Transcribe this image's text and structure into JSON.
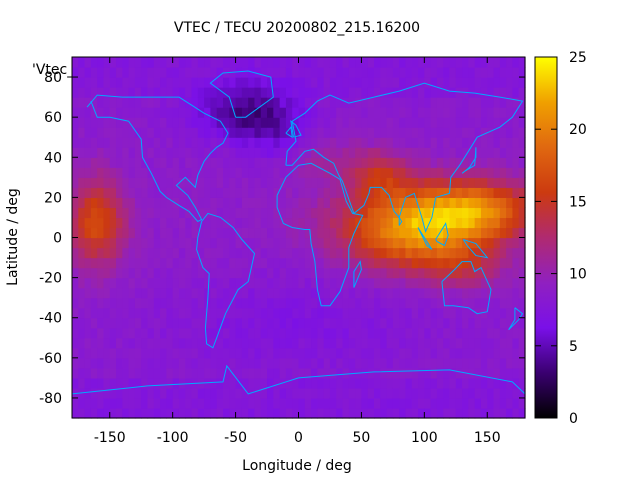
{
  "chart_data": {
    "type": "heatmap",
    "title": "VTEC / TECU 20200802_215.16200",
    "xlabel": "Longitude / deg",
    "ylabel": "Latitude / deg",
    "corner_label": "'Vtec_",
    "xlim": [
      -180,
      180
    ],
    "ylim": [
      -90,
      90
    ],
    "x_ticks": [
      -150,
      -100,
      -50,
      0,
      50,
      100,
      150
    ],
    "y_ticks": [
      -80,
      -60,
      -40,
      -20,
      0,
      20,
      40,
      60,
      80
    ],
    "colorbar": {
      "range": [
        0,
        25
      ],
      "ticks": [
        0,
        5,
        10,
        15,
        20,
        25
      ],
      "palette": [
        "#000000",
        "#3a0070",
        "#7a10e8",
        "#9020c0",
        "#b02a70",
        "#cc3a10",
        "#e06810",
        "#f0a000",
        "#ffff00"
      ]
    },
    "grid": {
      "lon_step": 5,
      "lat_step": 5,
      "background_level": 8,
      "features": [
        {
          "lon": 95,
          "lat": 5,
          "rlon": 60,
          "rlat": 20,
          "amp": 13
        },
        {
          "lon": 145,
          "lat": 15,
          "rlon": 45,
          "rlat": 14,
          "amp": 8
        },
        {
          "lon": 65,
          "lat": 32,
          "rlon": 25,
          "rlat": 12,
          "amp": 5
        },
        {
          "lon": -160,
          "lat": 8,
          "rlon": 22,
          "rlat": 22,
          "amp": 8
        },
        {
          "lon": -40,
          "lat": 62,
          "rlon": 40,
          "rlat": 14,
          "amp": -5
        },
        {
          "lon": -10,
          "lat": 48,
          "rlon": 25,
          "rlat": 12,
          "amp": -2
        },
        {
          "lon": 0,
          "lat": -40,
          "rlon": 120,
          "rlat": 25,
          "amp": -1.5
        },
        {
          "lon": 20,
          "lat": 40,
          "rlon": 30,
          "rlat": 12,
          "amp": 2
        },
        {
          "lon": 130,
          "lat": -15,
          "rlon": 30,
          "rlat": 10,
          "amp": 3
        }
      ]
    },
    "coastline_color": "#00aaff"
  }
}
